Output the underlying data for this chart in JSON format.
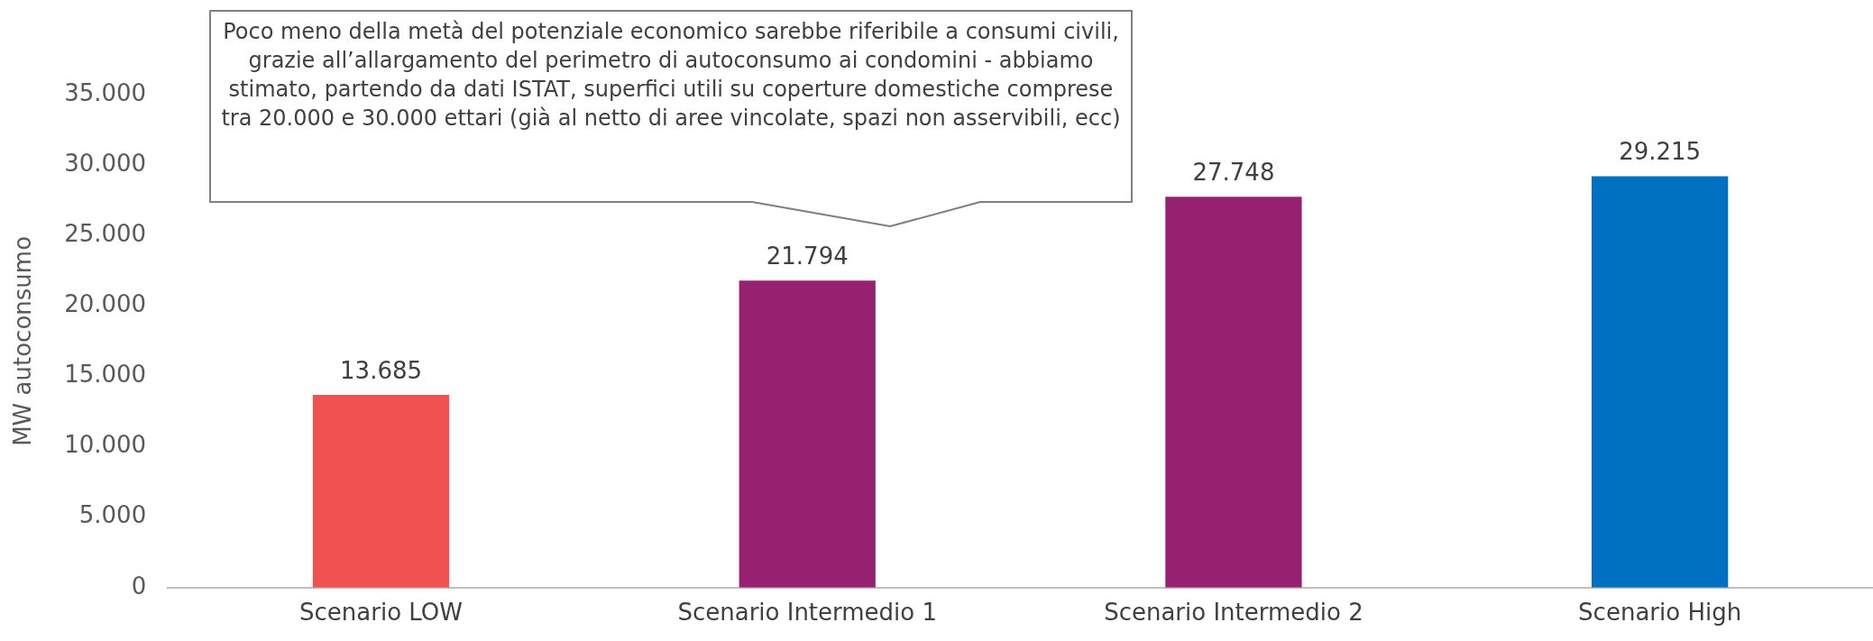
{
  "chart_data": {
    "type": "bar",
    "ylabel": "MW autoconsumo",
    "categories": [
      "Scenario LOW",
      "Scenario Intermedio 1",
      "Scenario Intermedio 2",
      "Scenario High"
    ],
    "values": [
      13685,
      21794,
      27748,
      29215
    ],
    "colors": [
      "#f05252",
      "#952170",
      "#952170",
      "#0070c0"
    ],
    "value_labels": [
      "13.685",
      "21.794",
      "27.748",
      "29.215"
    ],
    "ylim": [
      0,
      35000
    ],
    "yticks": [
      {
        "value": 0,
        "label": "0"
      },
      {
        "value": 5000,
        "label": "5.000"
      },
      {
        "value": 10000,
        "label": "10.000"
      },
      {
        "value": 15000,
        "label": "15.000"
      },
      {
        "value": 20000,
        "label": "20.000"
      },
      {
        "value": 25000,
        "label": "25.000"
      },
      {
        "value": 30000,
        "label": "30.000"
      },
      {
        "value": 35000,
        "label": "35.000"
      }
    ],
    "grid": false,
    "legend": false,
    "annotations": [
      "Poco meno della metà del potenziale economico sarebbe riferibile a consumi civili, grazie all’allargamento del perimetro di autoconsumo ai condomini - abbiamo stimato, partendo da dati ISTAT, superfici utili su coperture domestiche comprese tra 20.000 e 30.000 ettari (già al netto di aree vincolate, spazi non asservibili, ecc)"
    ]
  }
}
